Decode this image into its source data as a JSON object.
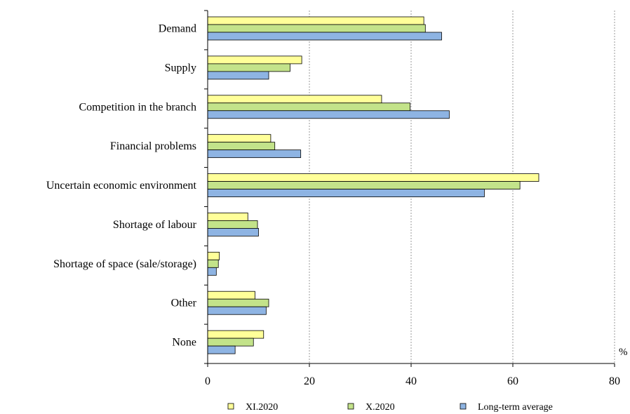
{
  "chart_data": {
    "type": "bar",
    "orientation": "horizontal",
    "categories": [
      "Demand",
      "Supply",
      "Competition in the branch",
      "Financial problems",
      "Uncertain economic environment",
      "Shortage of labour",
      "Shortage of space (sale/storage)",
      "Other",
      "None"
    ],
    "series": [
      {
        "name": "XI.2020",
        "color": "#ffff99",
        "values": [
          42.5,
          18.5,
          34.2,
          12.4,
          65.1,
          7.9,
          2.3,
          9.3,
          11.0
        ]
      },
      {
        "name": "X.2020",
        "color": "#c3e38a",
        "values": [
          42.8,
          16.2,
          39.8,
          13.2,
          61.4,
          9.8,
          2.1,
          12.0,
          9.0
        ]
      },
      {
        "name": "Long-term average",
        "color": "#8eb4e3",
        "values": [
          46.0,
          12.0,
          47.5,
          18.3,
          54.4,
          10.0,
          1.7,
          11.5,
          5.4
        ]
      }
    ],
    "xlim": [
      0,
      80
    ],
    "xticks": [
      "0",
      "20",
      "40",
      "60",
      "80"
    ],
    "xunit": "%",
    "grid": "vertical dashed",
    "legend_position": "bottom"
  }
}
